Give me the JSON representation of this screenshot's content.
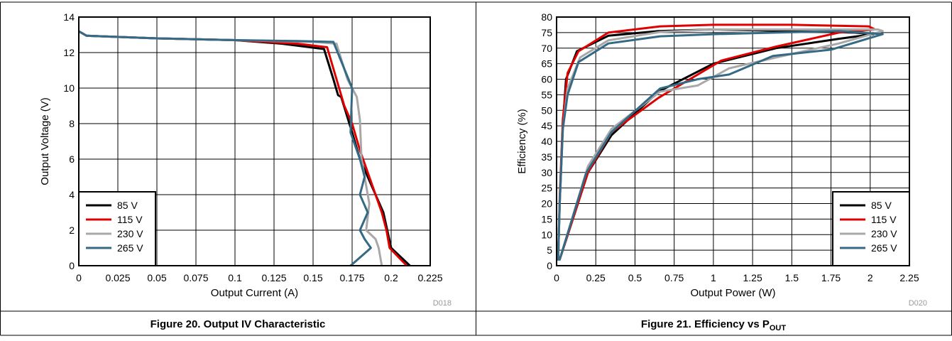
{
  "chart_data": [
    {
      "type": "line",
      "caption": "Figure 20. Output IV Characteristic",
      "figure_code": "D018",
      "xlabel": "Output Current (A)",
      "ylabel": "Output Voltage (V)",
      "xlim": [
        0,
        0.225
      ],
      "ylim": [
        0,
        14
      ],
      "xticks": [
        "0",
        "0.025",
        "0.05",
        "0.075",
        "0.1",
        "0.125",
        "0.15",
        "0.175",
        "0.2",
        "0.225"
      ],
      "yticks": [
        "0",
        "2",
        "4",
        "6",
        "8",
        "10",
        "12",
        "14"
      ],
      "grid": true,
      "legend_position": "bottom-left",
      "series": [
        {
          "name": "85 V",
          "color": "#000000",
          "points": [
            [
              0,
              13.2
            ],
            [
              0.005,
              12.95
            ],
            [
              0.05,
              12.8
            ],
            [
              0.1,
              12.7
            ],
            [
              0.13,
              12.5
            ],
            [
              0.157,
              12.2
            ],
            [
              0.163,
              10.5
            ],
            [
              0.166,
              9.6
            ],
            [
              0.168,
              9.5
            ],
            [
              0.175,
              7.5
            ],
            [
              0.18,
              6
            ],
            [
              0.185,
              5
            ],
            [
              0.19,
              4
            ],
            [
              0.195,
              3
            ],
            [
              0.2,
              1
            ],
            [
              0.212,
              0
            ]
          ]
        },
        {
          "name": "115 V",
          "color": "#e00000",
          "points": [
            [
              0,
              13.2
            ],
            [
              0.005,
              12.95
            ],
            [
              0.05,
              12.8
            ],
            [
              0.1,
              12.7
            ],
            [
              0.14,
              12.5
            ],
            [
              0.159,
              12.3
            ],
            [
              0.165,
              10.5
            ],
            [
              0.17,
              9
            ],
            [
              0.175,
              8
            ],
            [
              0.18,
              6.5
            ],
            [
              0.188,
              4.5
            ],
            [
              0.194,
              3
            ],
            [
              0.197,
              2
            ],
            [
              0.199,
              1
            ],
            [
              0.21,
              0
            ]
          ]
        },
        {
          "name": "230 V",
          "color": "#a8a8a8",
          "points": [
            [
              0,
              13.2
            ],
            [
              0.005,
              12.95
            ],
            [
              0.05,
              12.8
            ],
            [
              0.1,
              12.7
            ],
            [
              0.15,
              12.6
            ],
            [
              0.165,
              12.5
            ],
            [
              0.172,
              10.5
            ],
            [
              0.178,
              9.5
            ],
            [
              0.18,
              8.2
            ],
            [
              0.181,
              6
            ],
            [
              0.183,
              5
            ],
            [
              0.186,
              3.5
            ],
            [
              0.184,
              2
            ],
            [
              0.19,
              1.5
            ],
            [
              0.192,
              1
            ],
            [
              0.194,
              0
            ]
          ]
        },
        {
          "name": "265 V",
          "color": "#356a85",
          "points": [
            [
              0,
              13.2
            ],
            [
              0.005,
              12.95
            ],
            [
              0.05,
              12.8
            ],
            [
              0.1,
              12.7
            ],
            [
              0.14,
              12.65
            ],
            [
              0.163,
              12.6
            ],
            [
              0.175,
              10
            ],
            [
              0.174,
              7.5
            ],
            [
              0.18,
              6
            ],
            [
              0.183,
              5
            ],
            [
              0.18,
              4
            ],
            [
              0.185,
              3
            ],
            [
              0.18,
              2
            ],
            [
              0.183,
              1.5
            ],
            [
              0.187,
              1
            ],
            [
              0.174,
              0
            ]
          ]
        }
      ]
    },
    {
      "type": "line",
      "caption_main": "Figure 21. Efficiency vs P",
      "caption_sub": "OUT",
      "figure_code": "D020",
      "xlabel": "Output Power (W)",
      "ylabel": "Efficiency (%)",
      "xlim": [
        0,
        2.25
      ],
      "ylim": [
        0,
        80
      ],
      "xticks": [
        "0",
        "0.25",
        "0.5",
        "0.75",
        "1",
        "1.25",
        "1.5",
        "1.75",
        "2",
        "2.25"
      ],
      "yticks": [
        "0",
        "5",
        "10",
        "15",
        "20",
        "25",
        "30",
        "35",
        "40",
        "45",
        "50",
        "55",
        "60",
        "65",
        "70",
        "75",
        "80"
      ],
      "grid": true,
      "legend_position": "bottom-right",
      "series": [
        {
          "name": "85 V",
          "color": "#000000",
          "points": [
            [
              0.01,
              2
            ],
            [
              0.02,
              20
            ],
            [
              0.04,
              45
            ],
            [
              0.06,
              60
            ],
            [
              0.13,
              69
            ],
            [
              0.33,
              74
            ],
            [
              0.65,
              75.5
            ],
            [
              1,
              76
            ],
            [
              1.5,
              75.5
            ],
            [
              1.9,
              75
            ],
            [
              2.02,
              74.5
            ],
            [
              1.8,
              73
            ],
            [
              1.4,
              70
            ],
            [
              1,
              65
            ],
            [
              0.65,
              56
            ],
            [
              0.35,
              42
            ],
            [
              0.2,
              30
            ],
            [
              0.02,
              2
            ]
          ]
        },
        {
          "name": "115 V",
          "color": "#e00000",
          "points": [
            [
              0.01,
              2
            ],
            [
              0.02,
              22
            ],
            [
              0.04,
              47
            ],
            [
              0.07,
              62
            ],
            [
              0.14,
              69
            ],
            [
              0.33,
              75
            ],
            [
              0.66,
              77
            ],
            [
              1,
              77.5
            ],
            [
              1.5,
              77.5
            ],
            [
              1.99,
              77
            ],
            [
              2.03,
              76
            ],
            [
              1.8,
              75
            ],
            [
              1.4,
              70.5
            ],
            [
              1.05,
              66
            ],
            [
              0.65,
              54
            ],
            [
              0.35,
              43
            ],
            [
              0.2,
              30
            ],
            [
              0.02,
              2
            ]
          ]
        },
        {
          "name": "230 V",
          "color": "#a8a8a8",
          "points": [
            [
              0.01,
              2
            ],
            [
              0.02,
              20
            ],
            [
              0.04,
              44
            ],
            [
              0.07,
              57
            ],
            [
              0.15,
              67
            ],
            [
              0.33,
              72.5
            ],
            [
              0.66,
              75.2
            ],
            [
              1,
              76
            ],
            [
              1.5,
              76
            ],
            [
              2.05,
              76
            ],
            [
              2.08,
              75.5
            ],
            [
              1.8,
              71.5
            ],
            [
              1.4,
              67
            ],
            [
              1.1,
              63.5
            ],
            [
              0.9,
              58
            ],
            [
              0.66,
              56
            ],
            [
              0.35,
              44
            ],
            [
              0.2,
              32
            ],
            [
              0.02,
              2
            ]
          ]
        },
        {
          "name": "265 V",
          "color": "#356a85",
          "points": [
            [
              0.01,
              2
            ],
            [
              0.02,
              20
            ],
            [
              0.04,
              44
            ],
            [
              0.07,
              55
            ],
            [
              0.14,
              65.5
            ],
            [
              0.33,
              71.5
            ],
            [
              0.66,
              73.8
            ],
            [
              1,
              74.5
            ],
            [
              1.4,
              75
            ],
            [
              1.8,
              75.5
            ],
            [
              2.08,
              74.5
            ],
            [
              1.75,
              69.5
            ],
            [
              1.38,
              67.5
            ],
            [
              1.1,
              61.5
            ],
            [
              0.9,
              60
            ],
            [
              0.66,
              57
            ],
            [
              0.35,
              43
            ],
            [
              0.19,
              30
            ],
            [
              0.02,
              2
            ]
          ]
        }
      ]
    }
  ]
}
